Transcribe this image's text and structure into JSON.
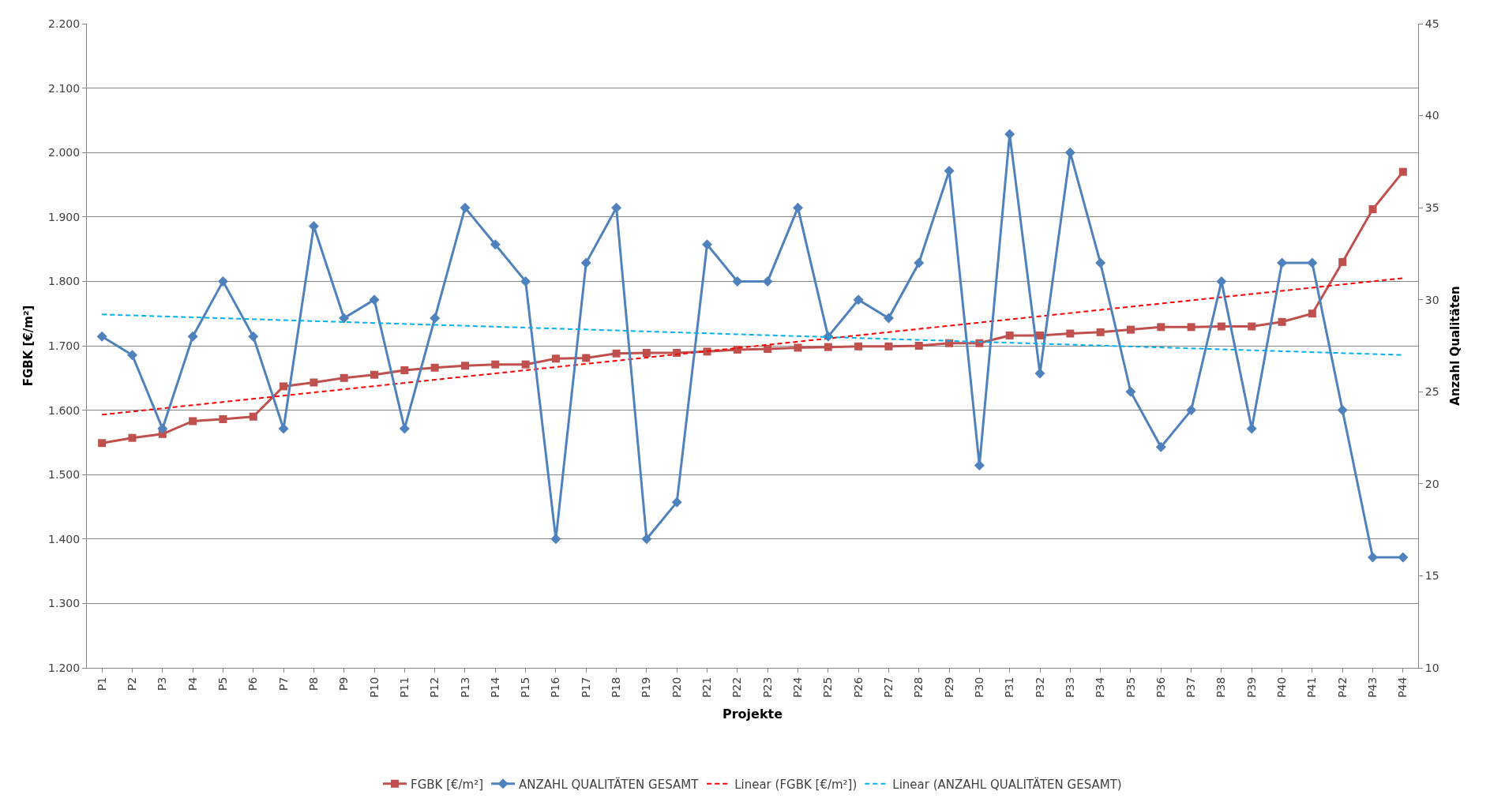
{
  "chart_data": {
    "type": "line",
    "xlabel": "Projekte",
    "ylabel": "FGBK [€/m²]",
    "y2label": "Anzahl Qualitäten",
    "categories": [
      "P1",
      "P2",
      "P3",
      "P4",
      "P5",
      "P6",
      "P7",
      "P8",
      "P9",
      "P10",
      "P11",
      "P12",
      "P13",
      "P14",
      "P15",
      "P16",
      "P17",
      "P18",
      "P19",
      "P20",
      "P21",
      "P22",
      "P23",
      "P24",
      "P25",
      "P26",
      "P27",
      "P28",
      "P29",
      "P30",
      "P31",
      "P32",
      "P33",
      "P34",
      "P35",
      "P36",
      "P37",
      "P38",
      "P39",
      "P40",
      "P41",
      "P42",
      "P43",
      "P44"
    ],
    "series": [
      {
        "name": "FGBK [€/m²]",
        "color": "#c0504d",
        "marker": "square",
        "line_style": "solid",
        "values": [
          1549,
          1557,
          1563,
          1583,
          1586,
          1590,
          1637,
          1643,
          1650,
          1655,
          1662,
          1666,
          1669,
          1671,
          1671,
          1680,
          1681,
          1688,
          1689,
          1689,
          1691,
          1694,
          1695,
          1697,
          1698,
          1699,
          1699,
          1700,
          1704,
          1704,
          1716,
          1716,
          1719,
          1721,
          1725,
          1729,
          1729,
          1730,
          1730,
          1737,
          1750,
          1830,
          1912,
          1970
        ]
      },
      {
        "name": "ANZAHL QUALITÄTEN GESAMT",
        "color": "#4f81bd",
        "marker": "diamond",
        "line_style": "solid",
        "axis": "y2",
        "values": [
          28,
          27,
          23,
          28,
          31,
          28,
          23,
          34,
          29,
          30,
          23,
          29,
          35,
          33,
          31,
          17,
          32,
          35,
          17,
          19,
          33,
          31,
          31,
          35,
          28,
          30,
          29,
          32,
          37,
          21,
          39,
          26,
          38,
          32,
          25,
          22,
          24,
          31,
          23,
          32,
          32,
          24,
          16,
          16
        ]
      },
      {
        "name": "Linear (FGBK [€/m²])",
        "color": "#ff0000",
        "marker": "none",
        "line_style": "dashed",
        "x": [
          "P1",
          "P44"
        ],
        "values": [
          1593,
          1805
        ]
      },
      {
        "name": "Linear (ANZAHL QUALITÄTEN GESAMT)",
        "color": "#00b0f0",
        "marker": "none",
        "line_style": "dashed",
        "axis": "y2",
        "x": [
          "P1",
          "P44"
        ],
        "values": [
          29.2,
          27.0
        ]
      }
    ],
    "ylim": [
      1200,
      2200
    ],
    "yticks": [
      {
        "value": 1200,
        "label": "1.200"
      },
      {
        "value": 1300,
        "label": "1.300"
      },
      {
        "value": 1400,
        "label": "1.400"
      },
      {
        "value": 1500,
        "label": "1.500"
      },
      {
        "value": 1600,
        "label": "1.600"
      },
      {
        "value": 1700,
        "label": "1.700"
      },
      {
        "value": 1800,
        "label": "1.800"
      },
      {
        "value": 1900,
        "label": "1.900"
      },
      {
        "value": 2000,
        "label": "2.000"
      },
      {
        "value": 2100,
        "label": "2.100"
      },
      {
        "value": 2200,
        "label": "2.200"
      }
    ],
    "y2lim": [
      10,
      45
    ],
    "y2ticks": [
      10,
      15,
      20,
      25,
      30,
      35,
      40,
      45
    ],
    "grid": "y",
    "legend": "bottom"
  }
}
